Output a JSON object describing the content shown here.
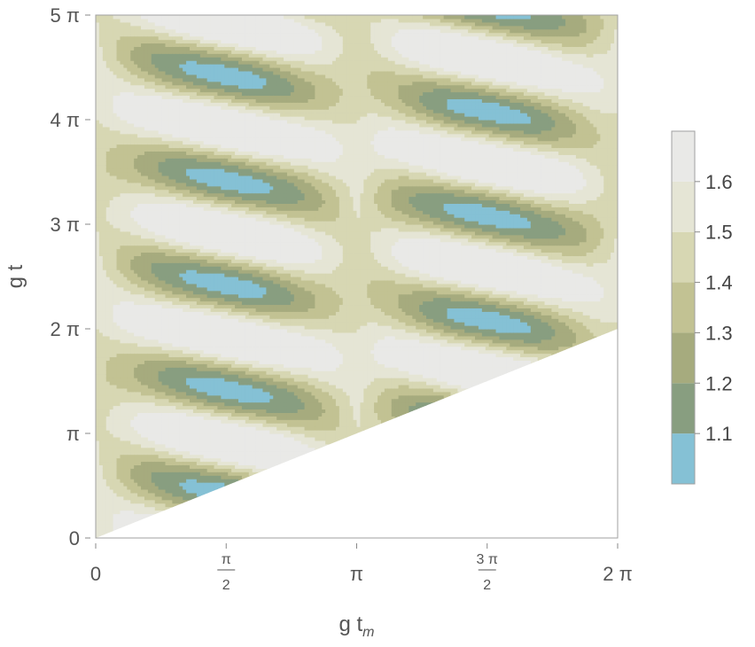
{
  "chart_data": {
    "type": "heatmap",
    "title": "",
    "xlabel": "g t",
    "xlabel_sub": "m",
    "ylabel": "g t",
    "xlim": [
      0,
      6.2832
    ],
    "ylim": [
      0,
      15.708
    ],
    "domain": "region where g t ≥ g t_m",
    "x_ticks": [
      {
        "value": 0,
        "label": "0"
      },
      {
        "value": 1.5708,
        "num": "π",
        "den": "2"
      },
      {
        "value": 3.1416,
        "label": "π"
      },
      {
        "value": 4.7124,
        "num": "3 π",
        "den": "2"
      },
      {
        "value": 6.2832,
        "label": "2 π"
      }
    ],
    "y_ticks": [
      {
        "value": 0,
        "label": "0"
      },
      {
        "value": 3.1416,
        "label": "π"
      },
      {
        "value": 6.2832,
        "label": "2 π"
      },
      {
        "value": 9.4248,
        "label": "3 π"
      },
      {
        "value": 12.5664,
        "label": "4 π"
      },
      {
        "value": 15.708,
        "label": "5 π"
      }
    ],
    "contour_levels": [
      1.1,
      1.2,
      1.3,
      1.4,
      1.5,
      1.6
    ],
    "value_range": [
      1.0,
      1.7
    ],
    "legend_labels": [
      "1.1",
      "1.2",
      "1.3",
      "1.4",
      "1.5",
      "1.6"
    ],
    "band_colors": [
      "#85c1d5",
      "#889e80",
      "#a6ab7e",
      "#c2c293",
      "#d7d7b3",
      "#e5e5d5",
      "#e9e9e7"
    ],
    "legend_position": "right"
  }
}
